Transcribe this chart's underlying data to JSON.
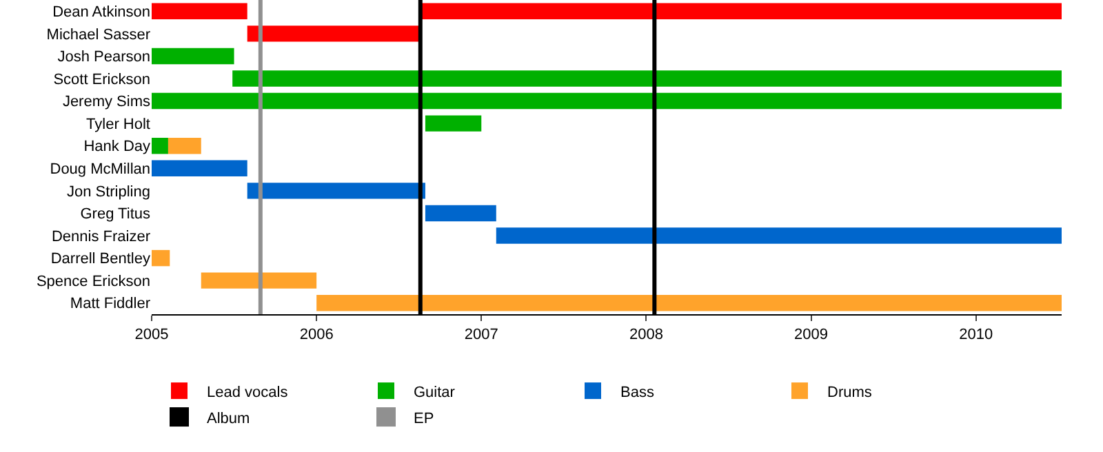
{
  "chart_data": {
    "type": "bar",
    "orientation": "horizontal",
    "categories": [
      "Dean Atkinson",
      "Michael Sasser",
      "Josh Pearson",
      "Scott Erickson",
      "Jeremy Sims",
      "Tyler Holt",
      "Hank Day",
      "Doug McMillan",
      "Jon Stripling",
      "Greg Titus",
      "Dennis Fraizer",
      "Darrell Bentley",
      "Spence Erickson",
      "Matt Fiddler"
    ],
    "series": [
      {
        "name": "Lead vocals",
        "color": "#ff0000",
        "base": [
          2005,
          2005.58,
          null,
          null,
          null,
          null,
          null,
          null,
          null,
          null,
          null,
          null,
          null,
          null
        ],
        "values": [
          0.58,
          1.05,
          null,
          null,
          null,
          null,
          null,
          null,
          null,
          null,
          null,
          null,
          null,
          null
        ]
      },
      {
        "name": "Guitar",
        "color": "#00b000",
        "base": [
          null,
          null,
          2005,
          2005.49,
          2005,
          2006.66,
          2005,
          null,
          null,
          null,
          null,
          null,
          null,
          null
        ],
        "values": [
          null,
          null,
          0.5,
          5.03,
          5.52,
          0.34,
          0.1,
          null,
          null,
          null,
          null,
          null,
          null,
          null
        ]
      },
      {
        "name": "Bass",
        "color": "#0066cc",
        "base": [
          null,
          null,
          null,
          null,
          null,
          null,
          null,
          2005,
          2005.58,
          2006.66,
          2007.09,
          null,
          null,
          null
        ],
        "values": [
          null,
          null,
          null,
          null,
          null,
          null,
          null,
          0.58,
          1.08,
          0.43,
          3.43,
          null,
          null,
          null
        ]
      },
      {
        "name": "Drums",
        "color": "#ffa32b",
        "base": [
          null,
          null,
          null,
          null,
          null,
          null,
          2005.1,
          null,
          null,
          null,
          null,
          2005,
          2005.3,
          2006
        ],
        "values": [
          null,
          null,
          null,
          null,
          null,
          null,
          0.2,
          null,
          null,
          null,
          null,
          0.11,
          0.7,
          4.52
        ]
      },
      {
        "color": "#ff0000",
        "base": [
          2006.63,
          null,
          null,
          null,
          null,
          null,
          null,
          null,
          null,
          null,
          null,
          null,
          null,
          null
        ],
        "values": [
          3.89,
          null,
          null,
          null,
          null,
          null,
          null,
          null,
          null,
          null,
          null,
          null,
          null,
          null
        ]
      }
    ],
    "ref_lines": [
      {
        "axis": "x",
        "value": 2005.66,
        "label": "EP",
        "color": "#909090"
      },
      {
        "axis": "x",
        "value": 2006.63,
        "label": "Album",
        "color": "#000000"
      },
      {
        "axis": "x",
        "value": 2008.05,
        "color": "#000000"
      }
    ],
    "xlim": [
      2005,
      2010.52
    ],
    "xticks": [
      2005,
      2006,
      2007,
      2008,
      2009,
      2010
    ],
    "grid": false,
    "legend": "bottom"
  }
}
